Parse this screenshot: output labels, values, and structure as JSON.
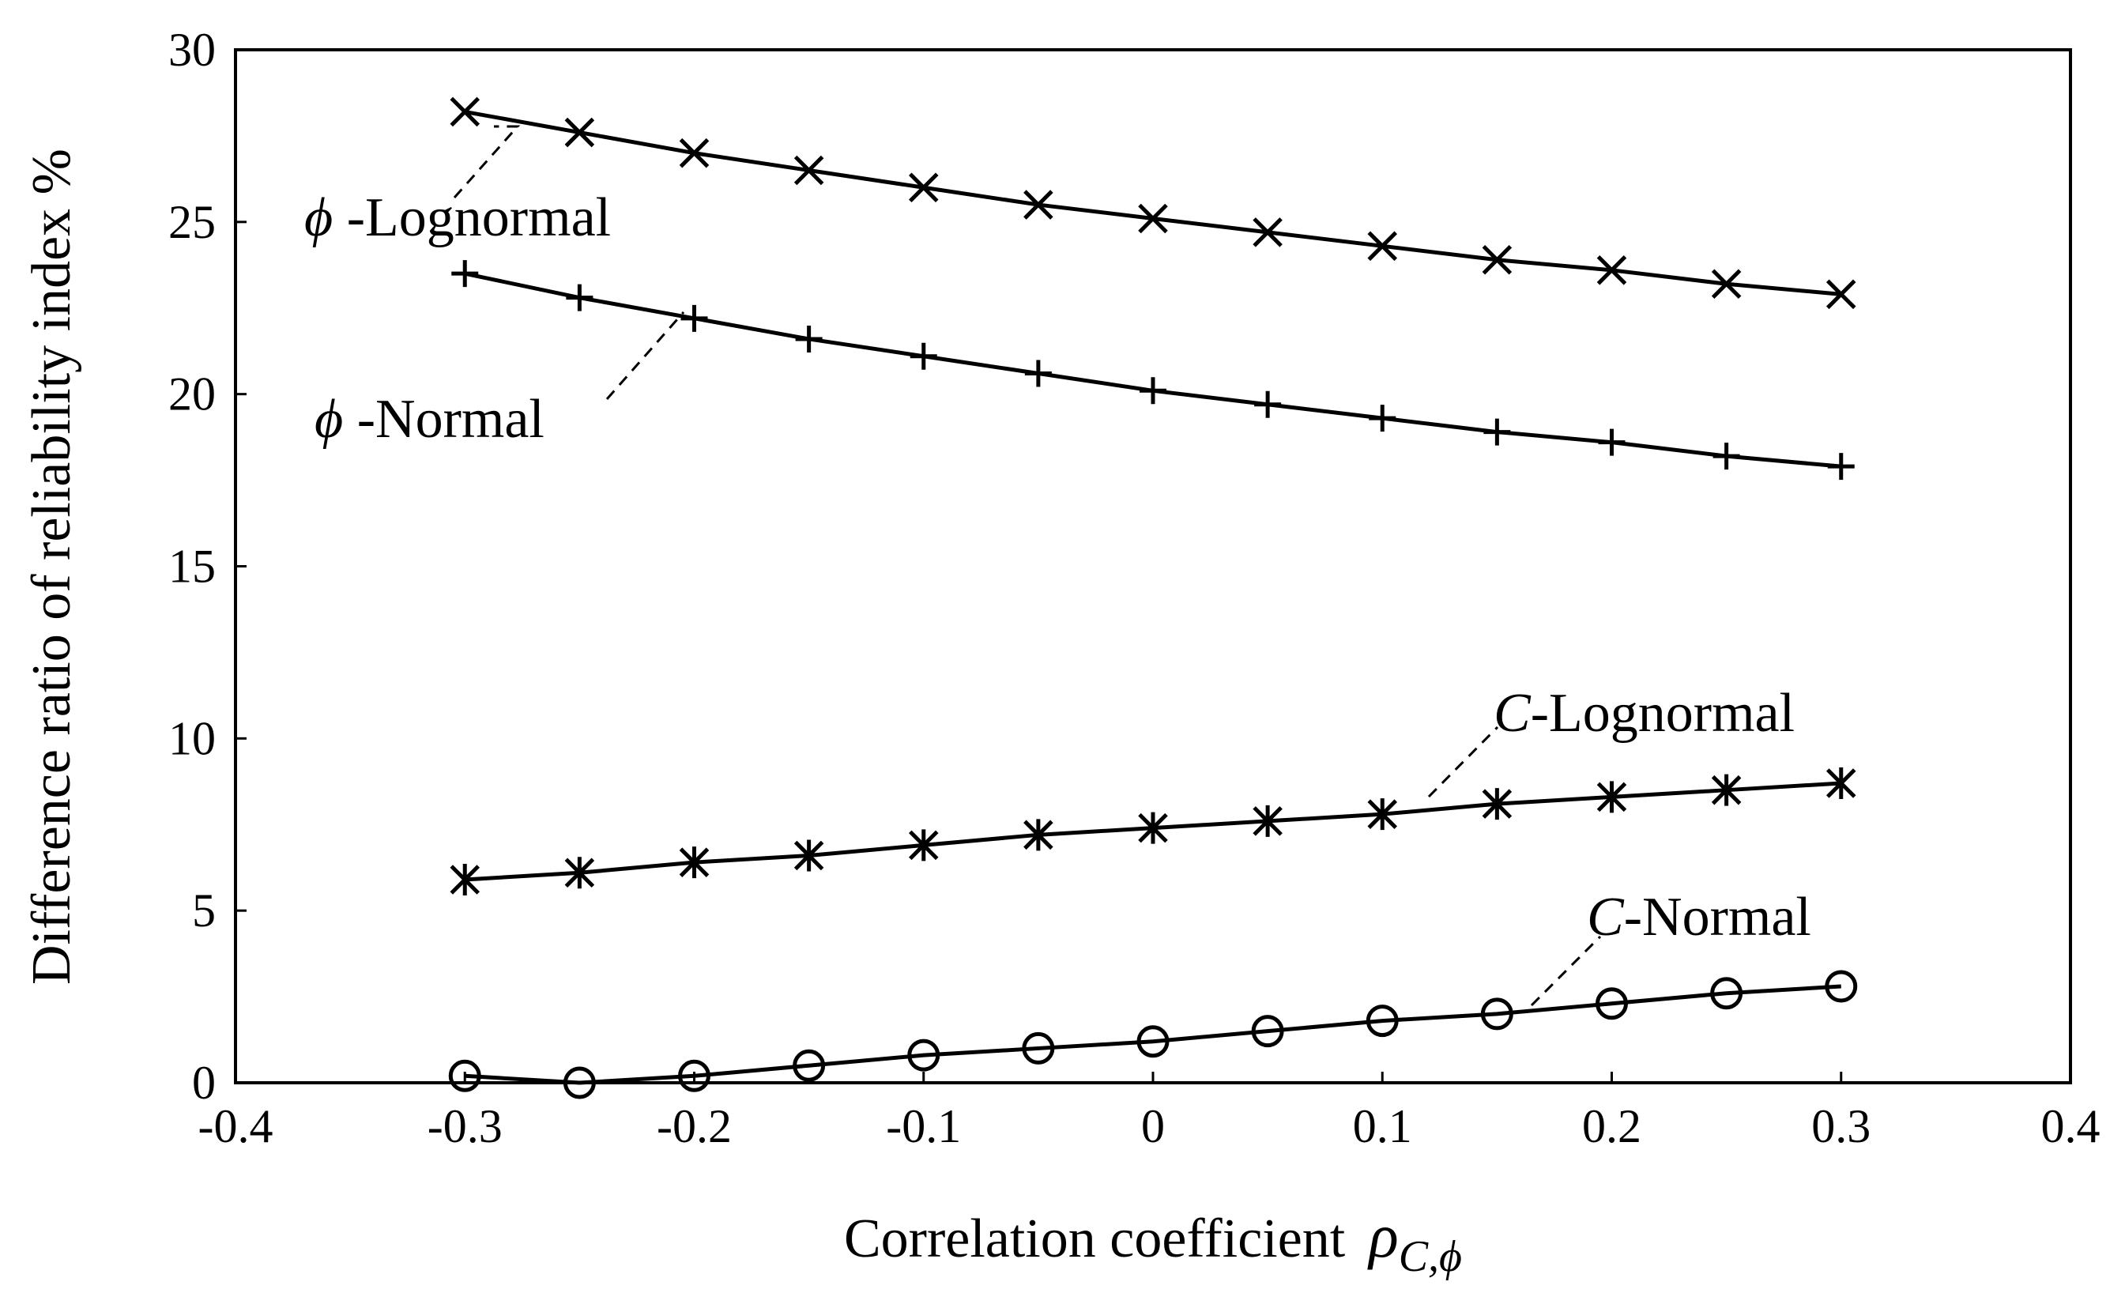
{
  "chart_data": {
    "type": "line",
    "xlabel": "Correlation coefficient",
    "xlabel_symbol": "ρ",
    "xlabel_subscript": "C,ϕ",
    "ylabel": "Difference ratio of reliability index %",
    "xlim": [
      -0.4,
      0.4
    ],
    "ylim": [
      0,
      30
    ],
    "xticks": [
      -0.4,
      -0.3,
      -0.2,
      -0.1,
      0,
      0.1,
      0.2,
      0.3,
      0.4
    ],
    "xtick_labels": [
      "-0.4",
      "-0.3",
      "-0.2",
      "-0.1",
      "0",
      "0.1",
      "0.2",
      "0.3",
      "0.4"
    ],
    "yticks": [
      0,
      5,
      10,
      15,
      20,
      25,
      30
    ],
    "ytick_labels": [
      "0",
      "5",
      "10",
      "15",
      "20",
      "25",
      "30"
    ],
    "grid": false,
    "x": [
      -0.3,
      -0.25,
      -0.2,
      -0.15,
      -0.1,
      -0.05,
      0,
      0.05,
      0.1,
      0.15,
      0.2,
      0.25,
      0.3
    ],
    "series": [
      {
        "name": "ϕ-Lognormal",
        "label_symbol": "ϕ",
        "label_text": " -Lognormal",
        "marker": "x",
        "values": [
          28.2,
          27.6,
          27.0,
          26.5,
          26.0,
          25.5,
          25.1,
          24.7,
          24.3,
          23.9,
          23.6,
          23.2,
          22.9
        ]
      },
      {
        "name": "ϕ-Normal",
        "label_symbol": "ϕ",
        "label_text": " -Normal",
        "marker": "plus",
        "values": [
          23.5,
          22.8,
          22.2,
          21.6,
          21.1,
          20.6,
          20.1,
          19.7,
          19.3,
          18.9,
          18.6,
          18.2,
          17.9
        ]
      },
      {
        "name": "C-Lognormal",
        "label_symbol": "C",
        "label_text": "-Lognormal",
        "marker": "asterisk",
        "values": [
          5.9,
          6.1,
          6.4,
          6.6,
          6.9,
          7.2,
          7.4,
          7.6,
          7.8,
          8.1,
          8.3,
          8.5,
          8.7
        ]
      },
      {
        "name": "C-Normal",
        "label_symbol": "C",
        "label_text": "-Normal",
        "marker": "circle",
        "values": [
          0.2,
          0.0,
          0.2,
          0.5,
          0.8,
          1.0,
          1.2,
          1.5,
          1.8,
          2.0,
          2.3,
          2.6,
          2.8
        ]
      }
    ]
  }
}
